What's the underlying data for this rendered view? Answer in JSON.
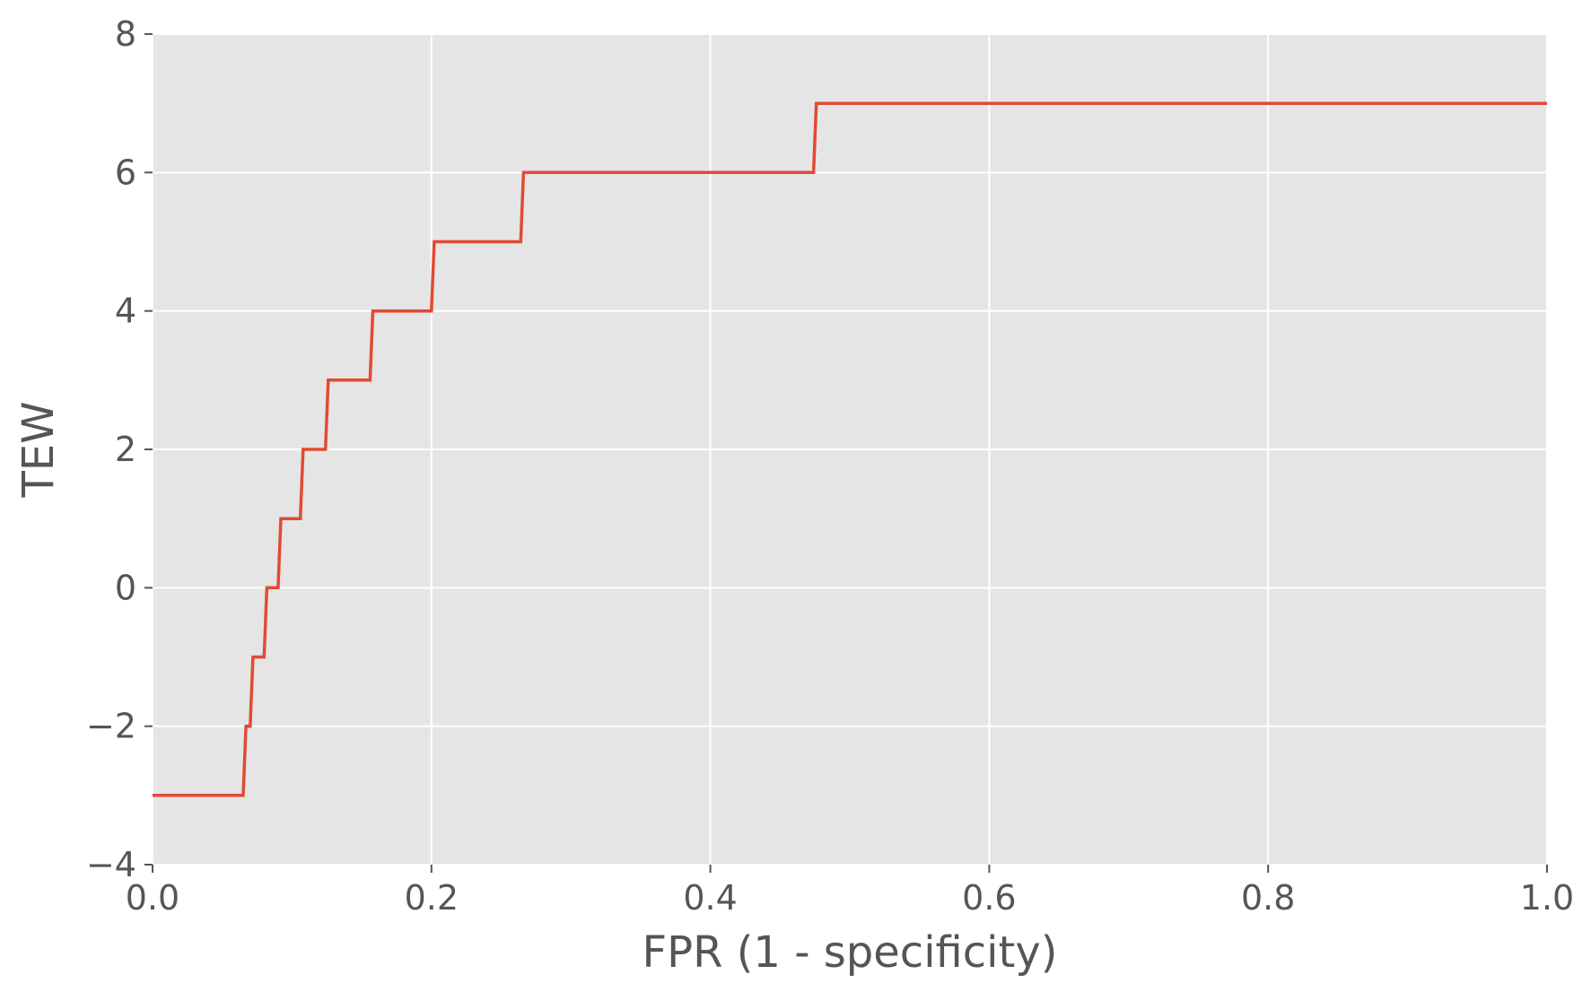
{
  "chart_data": {
    "type": "line",
    "title": "",
    "xlabel": "FPR (1 - specificity)",
    "ylabel": "TEW",
    "xlim": [
      0.0,
      1.0
    ],
    "ylim": [
      -4,
      8
    ],
    "x_ticks": [
      0.0,
      0.2,
      0.4,
      0.6,
      0.8,
      1.0
    ],
    "x_tick_labels": [
      "0.0",
      "0.2",
      "0.4",
      "0.6",
      "0.8",
      "1.0"
    ],
    "y_ticks": [
      -4,
      -2,
      0,
      2,
      4,
      6,
      8
    ],
    "y_tick_labels": [
      "−4",
      "−2",
      "0",
      "2",
      "4",
      "6",
      "8"
    ],
    "grid": true,
    "colors": {
      "background": "#e5e5e5",
      "grid": "#ffffff",
      "line": "#e24a33"
    },
    "series": [
      {
        "x": [
          0.0,
          0.065,
          0.067,
          0.07,
          0.072,
          0.08,
          0.082,
          0.09,
          0.092,
          0.106,
          0.108,
          0.124,
          0.126,
          0.156,
          0.158,
          0.2,
          0.202,
          0.264,
          0.266,
          0.474,
          0.476,
          1.0
        ],
        "y": [
          -3,
          -3,
          -2,
          -2,
          -1,
          -1,
          0,
          0,
          1,
          1,
          2,
          2,
          3,
          3,
          4,
          4,
          5,
          5,
          6,
          6,
          7,
          7
        ]
      }
    ]
  }
}
